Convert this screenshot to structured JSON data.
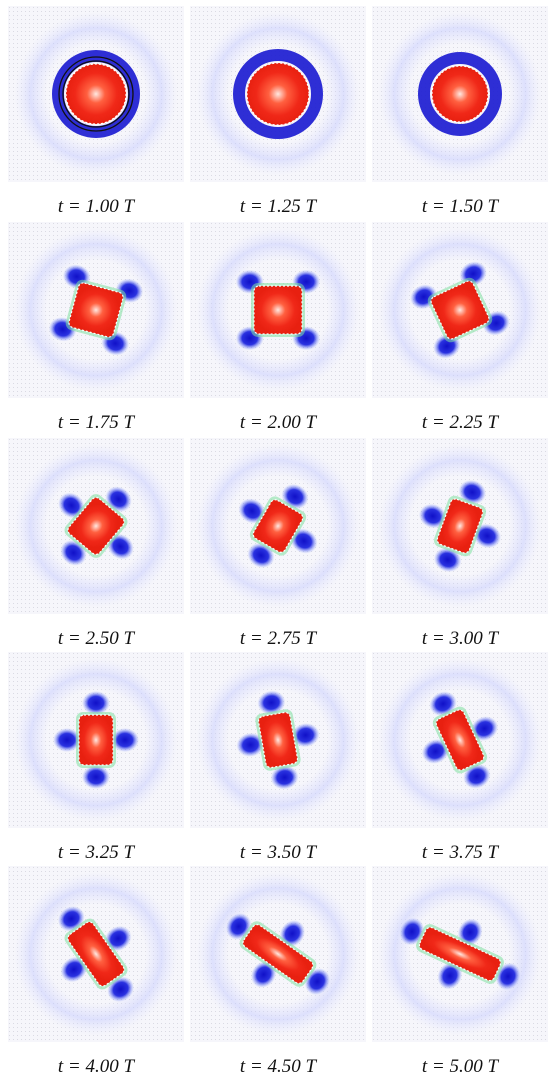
{
  "panels": [
    {
      "caption": "t = 1.00 T"
    },
    {
      "caption": "t = 1.25 T"
    },
    {
      "caption": "t = 1.50 T"
    },
    {
      "caption": "t = 1.75 T"
    },
    {
      "caption": "t = 2.00 T"
    },
    {
      "caption": "t = 2.25 T"
    },
    {
      "caption": "t = 2.50 T"
    },
    {
      "caption": "t = 2.75 T"
    },
    {
      "caption": "t = 3.00 T"
    },
    {
      "caption": "t = 3.25 T"
    },
    {
      "caption": "t = 3.50 T"
    },
    {
      "caption": "t = 3.75 T"
    },
    {
      "caption": "t = 4.00 T"
    },
    {
      "caption": "t = 4.50 T"
    },
    {
      "caption": "t = 5.00 T"
    }
  ]
}
